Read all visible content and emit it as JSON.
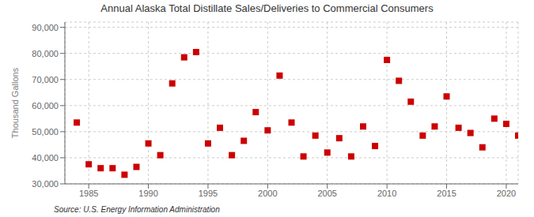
{
  "chart_data": {
    "type": "scatter",
    "title": "Annual Alaska Total Distillate Sales/Deliveries to Commercial Consumers",
    "ylabel": "Thousand Gallons",
    "annotations": [
      "Source: U.S. Energy Information Administration"
    ],
    "color": "#cc0000",
    "marker": "square",
    "grid": true,
    "xlim": [
      1983,
      2021
    ],
    "ylim": [
      30000,
      92000
    ],
    "xticks": [
      1985,
      1990,
      1995,
      2000,
      2005,
      2010,
      2015,
      2020
    ],
    "yticks": [
      {
        "value": 30000,
        "label": "30,000"
      },
      {
        "value": 40000,
        "label": "40,000"
      },
      {
        "value": 50000,
        "label": "50,000"
      },
      {
        "value": 60000,
        "label": "60,000"
      },
      {
        "value": 70000,
        "label": "70,000"
      },
      {
        "value": 80000,
        "label": "80,000"
      },
      {
        "value": 90000,
        "label": "90,000"
      }
    ],
    "x": [
      1984,
      1985,
      1986,
      1987,
      1988,
      1989,
      1990,
      1991,
      1992,
      1993,
      1994,
      1995,
      1996,
      1997,
      1998,
      1999,
      2000,
      2001,
      2002,
      2003,
      2004,
      2005,
      2006,
      2007,
      2008,
      2009,
      2010,
      2011,
      2012,
      2013,
      2014,
      2015,
      2016,
      2017,
      2018,
      2019,
      2020,
      2021
    ],
    "values": [
      53500,
      37500,
      36000,
      36000,
      33500,
      36500,
      45500,
      41000,
      68500,
      78500,
      80500,
      45500,
      51500,
      41000,
      46500,
      57500,
      50500,
      71500,
      53500,
      40500,
      48500,
      42000,
      47500,
      40500,
      52000,
      44500,
      77500,
      69500,
      61500,
      48500,
      52000,
      63500,
      51500,
      49500,
      44000,
      55000,
      53000,
      48500
    ]
  }
}
